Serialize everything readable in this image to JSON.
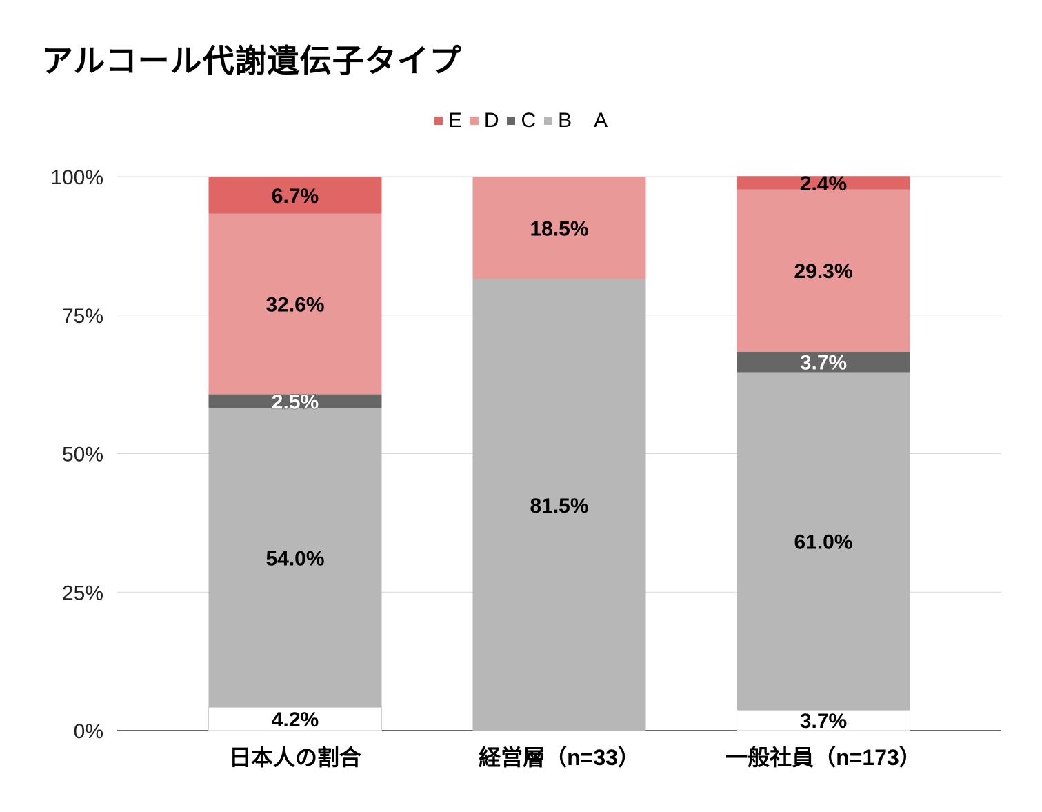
{
  "chart_data": {
    "type": "bar",
    "stacked": true,
    "title": "アルコール代謝遺伝子タイプ",
    "categories": [
      "日本人の割合",
      "経営層（n=33）",
      "一般社員（n=173）"
    ],
    "series": [
      {
        "name": "A",
        "color": "#ffffff",
        "values": [
          4.2,
          0.0,
          3.7
        ],
        "labels": [
          "4.2%",
          "",
          "3.7%"
        ],
        "label_color": "#000000"
      },
      {
        "name": "B",
        "color": "#b7b7b7",
        "values": [
          54.0,
          81.5,
          61.0
        ],
        "labels": [
          "54.0%",
          "81.5%",
          "61.0%"
        ],
        "label_color": "#000000"
      },
      {
        "name": "C",
        "color": "#666666",
        "values": [
          2.5,
          0.0,
          3.7
        ],
        "labels": [
          "2.5%",
          "",
          "3.7%"
        ],
        "label_color": "#ffffff"
      },
      {
        "name": "D",
        "color": "#ea9999",
        "values": [
          32.6,
          18.5,
          29.3
        ],
        "labels": [
          "32.6%",
          "18.5%",
          "29.3%"
        ],
        "label_color": "#000000"
      },
      {
        "name": "E",
        "color": "#e06666",
        "values": [
          6.7,
          0.0,
          2.4
        ],
        "labels": [
          "6.7%",
          "",
          "2.4%"
        ],
        "label_color": "#000000"
      }
    ],
    "legend_order": [
      "E",
      "D",
      "C",
      "B",
      "A"
    ],
    "yticks": [
      "0%",
      "25%",
      "50%",
      "75%",
      "100%"
    ],
    "ylim": [
      0,
      100
    ],
    "grid": true,
    "legend_position": "top-center"
  }
}
